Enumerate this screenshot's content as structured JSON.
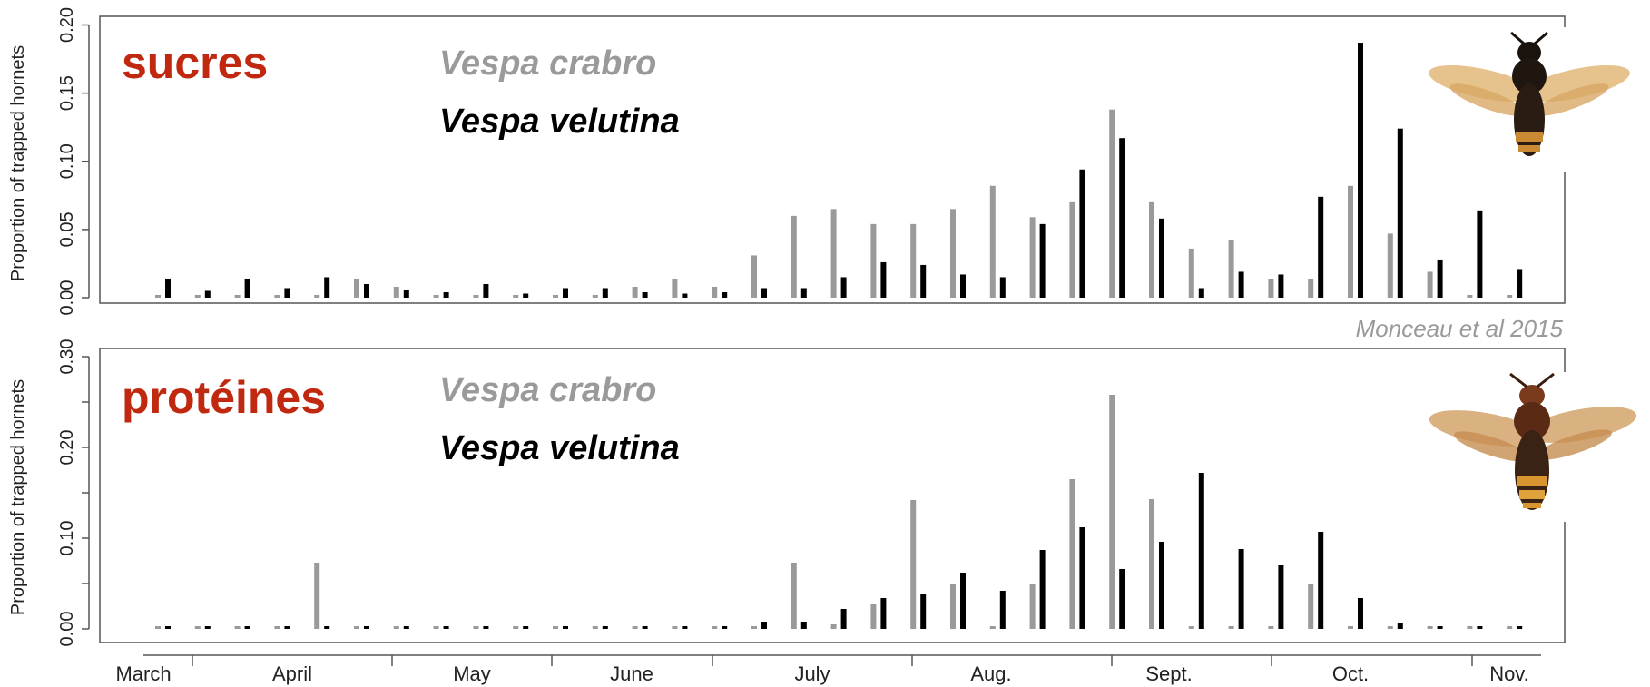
{
  "chart_data": [
    {
      "type": "bar",
      "title": "sucres",
      "ylabel": "Proportion of trapped hornets",
      "ylim": [
        0,
        0.205
      ],
      "yticks": [
        "0.00",
        "0.05",
        "0.10",
        "0.15",
        "0.20"
      ],
      "ytick_values": [
        0,
        0.05,
        0.1,
        0.15,
        0.2
      ],
      "citation": "Monceau et al 2015",
      "series": [
        {
          "name": "Vespa crabro",
          "color": "#9a9a9a",
          "values": [
            0.001,
            0.001,
            0.001,
            0.001,
            0.002,
            0.014,
            0.008,
            0.001,
            0.002,
            0.001,
            0.001,
            0.001,
            0.008,
            0.014,
            0.008,
            0.031,
            0.06,
            0.065,
            0.054,
            0.054,
            0.065,
            0.082,
            0.059,
            0.07,
            0.138,
            0.07,
            0.036,
            0.042,
            0.014,
            0.014,
            0.082,
            0.047,
            0.019,
            0.001,
            0.001
          ]
        },
        {
          "name": "Vespa velutina",
          "color": "#000000",
          "values": [
            0.014,
            0.005,
            0.014,
            0.007,
            0.015,
            0.01,
            0.006,
            0.004,
            0.01,
            0.003,
            0.007,
            0.007,
            0.004,
            0.003,
            0.004,
            0.007,
            0.007,
            0.015,
            0.026,
            0.024,
            0.017,
            0.015,
            0.054,
            0.094,
            0.117,
            0.058,
            0.007,
            0.019,
            0.017,
            0.074,
            0.187,
            0.124,
            0.028,
            0.064,
            0.021
          ]
        }
      ]
    },
    {
      "type": "bar",
      "title": "protéines",
      "ylabel": "Proportion of trapped hornets",
      "ylim": [
        0,
        0.3
      ],
      "yticks": [
        "0.00",
        "0.10",
        "0.20",
        "0.30"
      ],
      "ytick_values": [
        0,
        0.1,
        0.2,
        0.3
      ],
      "minor_ytick_values": [
        0.05,
        0.15,
        0.25
      ],
      "series": [
        {
          "name": "Vespa crabro",
          "color": "#9a9a9a",
          "values": [
            0.002,
            0.002,
            0.002,
            0.002,
            0.073,
            0.002,
            0.002,
            0.002,
            0.002,
            0.002,
            0.002,
            0.002,
            0.002,
            0.002,
            0.002,
            0.002,
            0.073,
            0.005,
            0.027,
            0.142,
            0.05,
            0.002,
            0.05,
            0.165,
            0.258,
            0.143,
            0.002,
            0.002,
            0.002,
            0.05,
            0.002,
            0.002,
            0.002,
            0.002,
            0.002
          ]
        },
        {
          "name": "Vespa velutina",
          "color": "#000000",
          "values": [
            0.002,
            0.002,
            0.002,
            0.002,
            0.002,
            0.002,
            0.002,
            0.002,
            0.002,
            0.002,
            0.002,
            0.002,
            0.002,
            0.003,
            0.003,
            0.008,
            0.008,
            0.022,
            0.034,
            0.038,
            0.062,
            0.042,
            0.087,
            0.112,
            0.066,
            0.096,
            0.172,
            0.088,
            0.07,
            0.107,
            0.034,
            0.006,
            0.003,
            0.003,
            0.003
          ]
        }
      ]
    }
  ],
  "months": [
    "March",
    "April",
    "May",
    "June",
    "July",
    "Aug.",
    "Sept.",
    "Oct.",
    "Nov."
  ],
  "images": [
    {
      "name": "vespa-velutina-photo"
    },
    {
      "name": "vespa-crabro-photo"
    }
  ]
}
